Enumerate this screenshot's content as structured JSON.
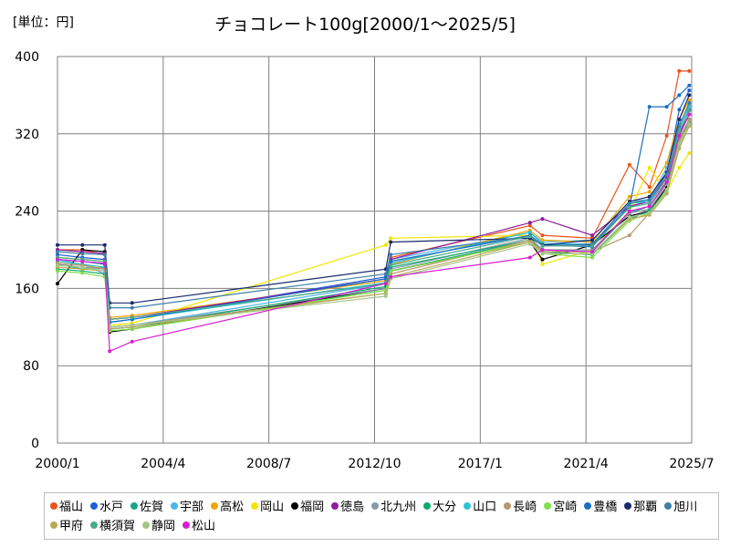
{
  "chart_data": {
    "type": "line",
    "title": "チョコレート100g[2000/1～2025/5]",
    "unit_label": "[単位：円]",
    "xlabel": "",
    "ylabel": "",
    "x_ticks": [
      "2000/1",
      "2004/4",
      "2008/7",
      "2012/10",
      "2017/1",
      "2021/4",
      "2025/7"
    ],
    "x_tick_values": [
      2000.0,
      2004.25,
      2008.5,
      2012.75,
      2017.0,
      2021.25,
      2025.5
    ],
    "xlim": [
      2000.0,
      2025.5
    ],
    "ylim": [
      0,
      400
    ],
    "y_ticks": [
      0,
      80,
      160,
      240,
      320,
      400
    ],
    "grid": true,
    "legend_position": "bottom",
    "series": [
      {
        "name": "福山",
        "color": "#e8541c",
        "x": [
          2000.0,
          2001.0,
          2001.9,
          2002.1,
          2003.0,
          2013.2,
          2013.4,
          2019.0,
          2019.5,
          2021.5,
          2023.0,
          2023.8,
          2024.5,
          2025.0,
          2025.4
        ],
        "y": [
          200,
          200,
          195,
          128,
          130,
          165,
          192,
          225,
          215,
          212,
          288,
          265,
          318,
          385,
          385
        ]
      },
      {
        "name": "水戸",
        "color": "#1f5fd6",
        "x": [
          2000.0,
          2001.0,
          2001.9,
          2002.1,
          2003.0,
          2013.2,
          2013.4,
          2019.0,
          2019.5,
          2021.5,
          2023.0,
          2023.8,
          2024.5,
          2025.0,
          2025.4
        ],
        "y": [
          195,
          192,
          190,
          125,
          128,
          172,
          188,
          215,
          205,
          205,
          245,
          250,
          280,
          345,
          365
        ]
      },
      {
        "name": "佐賀",
        "color": "#17a589",
        "x": [
          2000.0,
          2001.0,
          2001.9,
          2002.1,
          2003.0,
          2013.2,
          2013.4,
          2019.0,
          2019.5,
          2021.5,
          2023.0,
          2023.8,
          2024.5,
          2025.0,
          2025.4
        ],
        "y": [
          185,
          180,
          182,
          118,
          120,
          158,
          178,
          210,
          200,
          198,
          238,
          245,
          270,
          320,
          340
        ]
      },
      {
        "name": "宇部",
        "color": "#4db6e8",
        "x": [
          2000.0,
          2001.0,
          2001.9,
          2002.1,
          2003.0,
          2013.2,
          2013.4,
          2019.0,
          2019.5,
          2021.5,
          2023.0,
          2023.8,
          2024.5,
          2025.0,
          2025.4
        ],
        "y": [
          190,
          185,
          175,
          120,
          122,
          165,
          190,
          218,
          208,
          210,
          250,
          252,
          285,
          330,
          350
        ]
      },
      {
        "name": "高松",
        "color": "#f0a500",
        "x": [
          2000.0,
          2001.0,
          2001.9,
          2002.1,
          2003.0,
          2013.2,
          2013.4,
          2019.0,
          2019.5,
          2021.5,
          2023.0,
          2023.8,
          2024.5,
          2025.0,
          2025.4
        ],
        "y": [
          192,
          190,
          188,
          130,
          132,
          168,
          185,
          220,
          210,
          208,
          255,
          260,
          290,
          335,
          355
        ]
      },
      {
        "name": "岡山",
        "color": "#f2e600",
        "x": [
          2000.0,
          2001.0,
          2001.9,
          2002.1,
          2003.0,
          2013.2,
          2013.4,
          2019.0,
          2019.5,
          2021.5,
          2023.0,
          2023.8,
          2024.5,
          2025.0,
          2025.4
        ],
        "y": [
          188,
          185,
          180,
          122,
          124,
          205,
          212,
          215,
          185,
          200,
          240,
          285,
          260,
          285,
          300
        ]
      },
      {
        "name": "福岡",
        "color": "#000000",
        "x": [
          2000.0,
          2001.0,
          2001.9,
          2002.1,
          2003.0,
          2013.2,
          2013.4,
          2019.0,
          2019.5,
          2021.5,
          2023.0,
          2023.8,
          2024.5,
          2025.0,
          2025.4
        ],
        "y": [
          165,
          200,
          198,
          115,
          118,
          160,
          178,
          208,
          190,
          205,
          235,
          240,
          265,
          310,
          330
        ]
      },
      {
        "name": "徳島",
        "color": "#8e1c9c",
        "x": [
          2000.0,
          2001.0,
          2001.9,
          2002.1,
          2003.0,
          2013.2,
          2013.4,
          2019.0,
          2019.5,
          2021.5,
          2023.0,
          2023.8,
          2024.5,
          2025.0,
          2025.4
        ],
        "y": [
          200,
          198,
          196,
          128,
          130,
          170,
          190,
          228,
          232,
          215,
          245,
          250,
          275,
          320,
          345
        ]
      },
      {
        "name": "北九州",
        "color": "#8899aa",
        "x": [
          2000.0,
          2001.0,
          2001.9,
          2002.1,
          2003.0,
          2013.2,
          2013.4,
          2019.0,
          2019.5,
          2021.5,
          2023.0,
          2023.8,
          2024.5,
          2025.0,
          2025.4
        ],
        "y": [
          185,
          182,
          180,
          120,
          122,
          160,
          180,
          212,
          200,
          200,
          238,
          242,
          268,
          315,
          335
        ]
      },
      {
        "name": "大分",
        "color": "#0fa86f",
        "x": [
          2000.0,
          2001.0,
          2001.9,
          2002.1,
          2003.0,
          2013.2,
          2013.4,
          2019.0,
          2019.5,
          2021.5,
          2023.0,
          2023.8,
          2024.5,
          2025.0,
          2025.4
        ],
        "y": [
          180,
          178,
          175,
          118,
          120,
          162,
          182,
          210,
          198,
          195,
          232,
          240,
          262,
          310,
          332
        ]
      },
      {
        "name": "山口",
        "color": "#2cc1d6",
        "x": [
          2000.0,
          2001.0,
          2001.9,
          2002.1,
          2003.0,
          2013.2,
          2013.4,
          2019.0,
          2019.5,
          2021.5,
          2023.0,
          2023.8,
          2024.5,
          2025.0,
          2025.4
        ],
        "y": [
          188,
          185,
          182,
          125,
          128,
          166,
          186,
          218,
          206,
          206,
          248,
          250,
          278,
          325,
          348
        ]
      },
      {
        "name": "長崎",
        "color": "#b89a6a",
        "x": [
          2000.0,
          2001.0,
          2001.9,
          2002.1,
          2003.0,
          2013.2,
          2013.4,
          2019.0,
          2019.5,
          2021.5,
          2023.0,
          2023.8,
          2024.5,
          2025.0,
          2025.4
        ],
        "y": [
          186,
          184,
          180,
          120,
          122,
          155,
          175,
          210,
          198,
          198,
          215,
          238,
          262,
          312,
          334
        ]
      },
      {
        "name": "宮崎",
        "color": "#7ee04a",
        "x": [
          2000.0,
          2001.0,
          2001.9,
          2002.1,
          2003.0,
          2013.2,
          2013.4,
          2019.0,
          2019.5,
          2021.5,
          2023.0,
          2023.8,
          2024.5,
          2025.0,
          2025.4
        ],
        "y": [
          178,
          176,
          172,
          116,
          118,
          158,
          178,
          208,
          196,
          192,
          230,
          238,
          260,
          308,
          330
        ]
      },
      {
        "name": "豊橋",
        "color": "#1a6fc4",
        "x": [
          2000.0,
          2001.0,
          2001.9,
          2002.1,
          2003.0,
          2013.2,
          2013.4,
          2019.0,
          2019.5,
          2021.5,
          2023.0,
          2023.8,
          2024.5,
          2025.0,
          2025.4
        ],
        "y": [
          190,
          188,
          185,
          125,
          128,
          170,
          188,
          215,
          205,
          203,
          245,
          348,
          348,
          360,
          370
        ]
      },
      {
        "name": "那覇",
        "color": "#1a2a6e",
        "x": [
          2000.0,
          2001.0,
          2001.9,
          2002.1,
          2003.0,
          2013.2,
          2013.4,
          2019.0,
          2019.5,
          2021.5,
          2023.0,
          2023.8,
          2024.5,
          2025.0,
          2025.4
        ],
        "y": [
          205,
          205,
          205,
          145,
          145,
          180,
          208,
          212,
          205,
          210,
          250,
          255,
          280,
          335,
          360
        ]
      },
      {
        "name": "旭川",
        "color": "#3d7fa8",
        "x": [
          2000.0,
          2001.0,
          2001.9,
          2002.1,
          2003.0,
          2013.2,
          2013.4,
          2019.0,
          2019.5,
          2021.5,
          2023.0,
          2023.8,
          2024.5,
          2025.0,
          2025.4
        ],
        "y": [
          198,
          196,
          195,
          140,
          140,
          175,
          195,
          214,
          204,
          206,
          248,
          252,
          278,
          328,
          352
        ]
      },
      {
        "name": "甲府",
        "color": "#b8aa55",
        "x": [
          2000.0,
          2001.0,
          2001.9,
          2002.1,
          2003.0,
          2013.2,
          2013.4,
          2019.0,
          2019.5,
          2021.5,
          2023.0,
          2023.8,
          2024.5,
          2025.0,
          2025.4
        ],
        "y": [
          182,
          180,
          178,
          118,
          120,
          155,
          172,
          208,
          196,
          196,
          232,
          236,
          258,
          305,
          328
        ]
      },
      {
        "name": "横須賀",
        "color": "#4aaa8a",
        "x": [
          2000.0,
          2001.0,
          2001.9,
          2002.1,
          2003.0,
          2013.2,
          2013.4,
          2019.0,
          2019.5,
          2021.5,
          2023.0,
          2023.8,
          2024.5,
          2025.0,
          2025.4
        ],
        "y": [
          192,
          190,
          188,
          128,
          130,
          165,
          184,
          214,
          204,
          204,
          244,
          248,
          272,
          322,
          344
        ]
      },
      {
        "name": "静岡",
        "color": "#a6c48a",
        "x": [
          2000.0,
          2001.0,
          2001.9,
          2002.1,
          2003.0,
          2013.2,
          2013.4,
          2019.0,
          2019.5,
          2021.5,
          2023.0,
          2023.8,
          2024.5,
          2025.0,
          2025.4
        ],
        "y": [
          184,
          182,
          178,
          120,
          122,
          152,
          170,
          206,
          196,
          196,
          234,
          238,
          262,
          310,
          330
        ]
      },
      {
        "name": "松山",
        "color": "#d81fd0",
        "x": [
          2000.0,
          2001.0,
          2001.9,
          2002.1,
          2003.0,
          2013.2,
          2013.4,
          2019.0,
          2019.5,
          2021.5,
          2023.0,
          2023.8,
          2024.5,
          2025.0,
          2025.4
        ],
        "y": [
          190,
          188,
          186,
          95,
          105,
          165,
          172,
          192,
          200,
          198,
          240,
          245,
          270,
          318,
          340
        ]
      }
    ]
  }
}
